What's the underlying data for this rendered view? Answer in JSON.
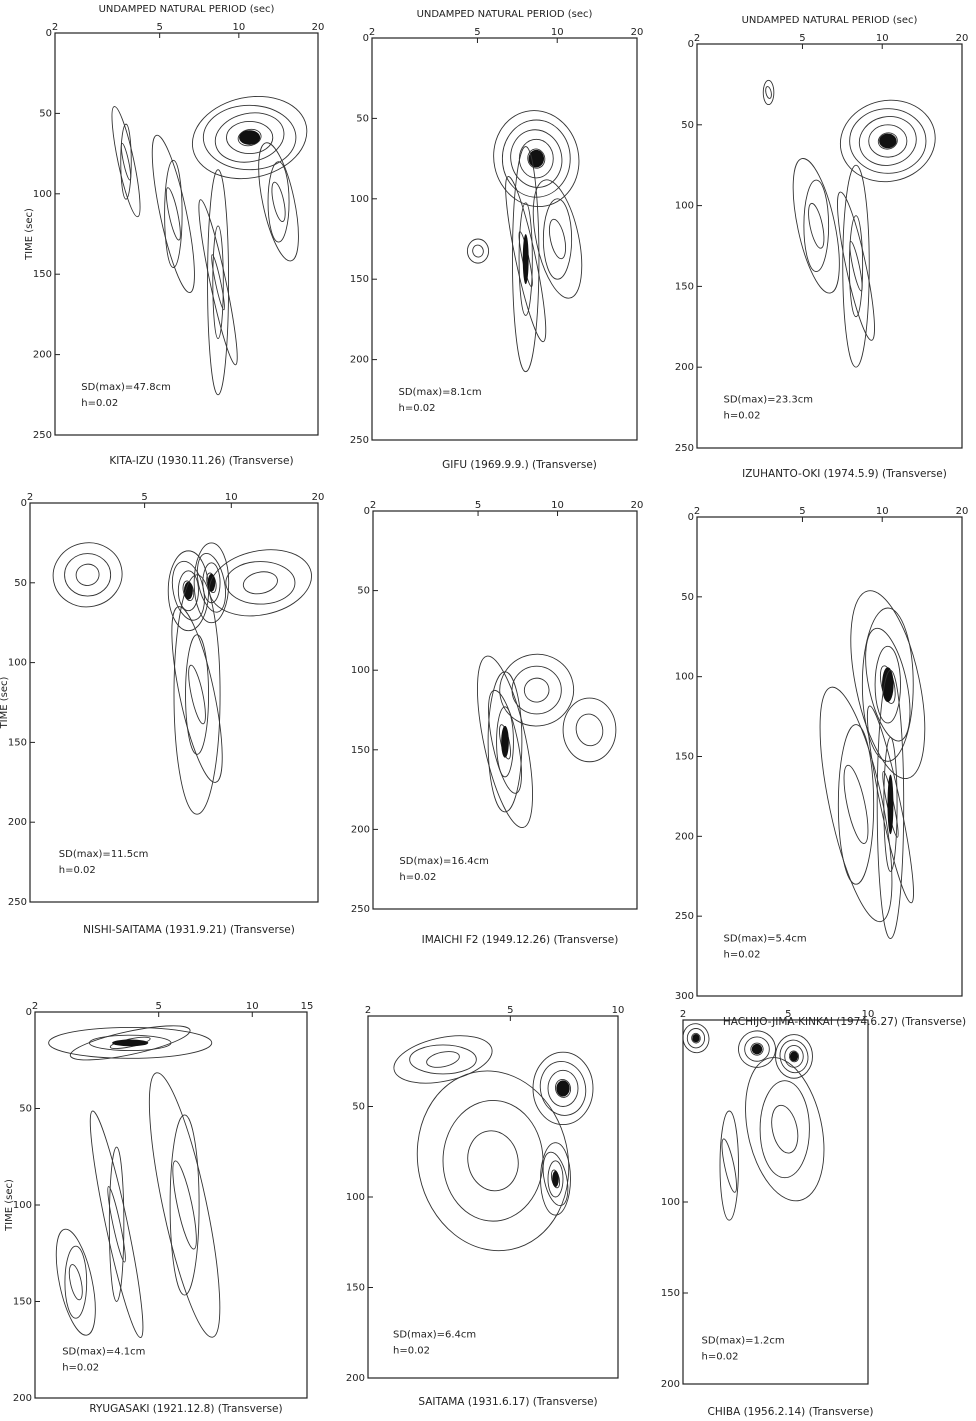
{
  "chart_data": [
    {
      "type": "contour",
      "title": "KITA-IZU (1930.11.26) (Transverse)",
      "xlabel": "UNDAMPED NATURAL PERIOD (sec)",
      "ylabel": "TIME (sec)",
      "xscale": "log",
      "xlim": [
        2,
        20
      ],
      "xticks": [
        2,
        5,
        10,
        20
      ],
      "ylim": [
        0,
        250
      ],
      "yticks": [
        0,
        50,
        100,
        150,
        200,
        250
      ],
      "annotations": [
        "SD(max)=47.8cm",
        "h=0.02"
      ]
    },
    {
      "type": "contour",
      "title": "GIFU (1969.9.9.) (Transverse)",
      "xlabel": "UNDAMPED NATURAL PERIOD (sec)",
      "xscale": "log",
      "xlim": [
        2,
        20
      ],
      "xticks": [
        2,
        5,
        10,
        20
      ],
      "ylim": [
        0,
        250
      ],
      "yticks": [
        0,
        50,
        100,
        150,
        200,
        250
      ],
      "annotations": [
        "SD(max)=8.1cm",
        "h=0.02"
      ]
    },
    {
      "type": "contour",
      "title": "IZUHANTO-OKI (1974.5.9) (Transverse)",
      "xlabel": "UNDAMPED NATURAL PERIOD (sec)",
      "xscale": "log",
      "xlim": [
        2,
        20
      ],
      "xticks": [
        2,
        5,
        10,
        20
      ],
      "ylim": [
        0,
        250
      ],
      "yticks": [
        0,
        50,
        100,
        150,
        200,
        250
      ],
      "annotations": [
        "SD(max)=23.3cm",
        "h=0.02"
      ]
    },
    {
      "type": "contour",
      "title": "NISHI-SAITAMA (1931.9.21) (Transverse)",
      "ylabel": "TIME (sec)",
      "xscale": "log",
      "xlim": [
        2,
        20
      ],
      "xticks": [
        2,
        5,
        10,
        20
      ],
      "ylim": [
        0,
        250
      ],
      "yticks": [
        0,
        50,
        100,
        150,
        200,
        250
      ],
      "annotations": [
        "SD(max)=11.5cm",
        "h=0.02"
      ]
    },
    {
      "type": "contour",
      "title": "IMAICHI F2 (1949.12.26) (Transverse)",
      "xscale": "log",
      "xlim": [
        2,
        20
      ],
      "xticks": [
        2,
        5,
        10,
        20
      ],
      "ylim": [
        0,
        250
      ],
      "yticks": [
        0,
        50,
        100,
        150,
        200,
        250
      ],
      "annotations": [
        "SD(max)=16.4cm",
        "h=0.02"
      ]
    },
    {
      "type": "contour",
      "title": "HACHIJO-JIMA-KINKAI (1974.6.27) (Transverse)",
      "xscale": "log",
      "xlim": [
        2,
        20
      ],
      "xticks": [
        2,
        5,
        10,
        20
      ],
      "ylim": [
        0,
        300
      ],
      "yticks": [
        0,
        50,
        100,
        150,
        200,
        250,
        300
      ],
      "annotations": [
        "SD(max)=5.4cm",
        "h=0.02"
      ]
    },
    {
      "type": "contour",
      "title": "RYUGASAKI (1921.12.8) (Transverse)",
      "ylabel": "TIME (sec)",
      "xscale": "log",
      "xlim": [
        2,
        15
      ],
      "xticks": [
        2,
        5,
        10,
        15
      ],
      "ylim": [
        0,
        200
      ],
      "yticks": [
        0,
        50,
        100,
        150,
        200
      ],
      "annotations": [
        "SD(max)=4.1cm",
        "h=0.02"
      ]
    },
    {
      "type": "contour",
      "title": "SAITAMA (1931.6.17) (Transverse)",
      "xscale": "log",
      "xlim": [
        2,
        10
      ],
      "xticks": [
        2,
        5,
        10
      ],
      "ylim": [
        0,
        200
      ],
      "yticks": [
        50,
        100,
        150,
        200
      ],
      "annotations": [
        "SD(max)=6.4cm",
        "h=0.02"
      ]
    },
    {
      "type": "contour",
      "title": "CHIBA (1956.2.14) (Transverse)",
      "xscale": "log",
      "xlim": [
        2,
        10
      ],
      "xticks": [
        2,
        5,
        10
      ],
      "ylim": [
        0,
        200
      ],
      "yticks": [
        100,
        150,
        200
      ],
      "annotations": [
        "SD(max)=1.2cm",
        "h=0.02"
      ]
    }
  ]
}
